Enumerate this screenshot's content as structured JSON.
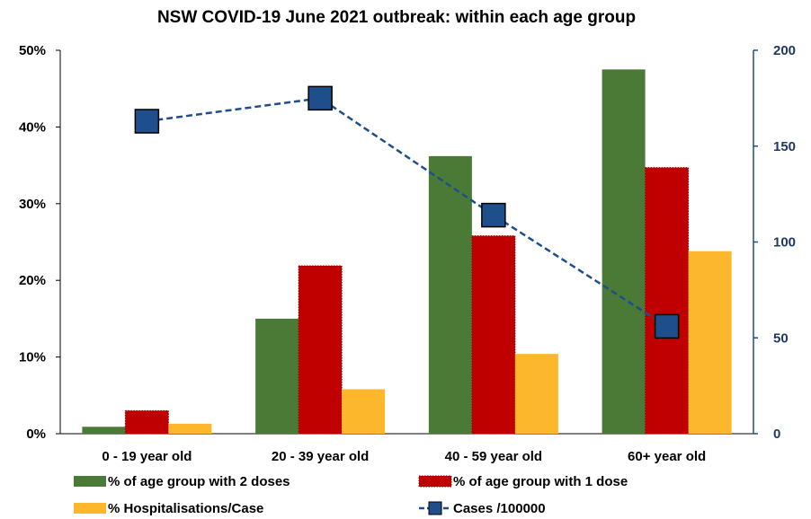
{
  "chart_data": {
    "type": "bar",
    "title": "NSW COVID-19 June 2021 outbreak: within each age group",
    "categories": [
      "0 - 19 year old",
      "20 - 39 year old",
      "40 - 59 year old",
      "60+ year old"
    ],
    "y_left": {
      "ylim": [
        0,
        50
      ],
      "ticks": [
        "0%",
        "10%",
        "20%",
        "30%",
        "40%",
        "50%"
      ],
      "tick_values": [
        0,
        10,
        20,
        30,
        40,
        50
      ]
    },
    "y_right": {
      "ylim": [
        0,
        200
      ],
      "ticks": [
        "0",
        "50",
        "100",
        "150",
        "200"
      ],
      "tick_values": [
        0,
        50,
        100,
        150,
        200
      ]
    },
    "series": [
      {
        "name": "% of age group with 2 doses",
        "type": "bar",
        "axis": "left",
        "color": "#4a7a36",
        "values": [
          0.9,
          15.0,
          36.2,
          47.5
        ]
      },
      {
        "name": "% of age group with 1 dose",
        "type": "bar",
        "axis": "left",
        "color": "#c00000",
        "values": [
          3.0,
          21.9,
          25.8,
          34.7
        ]
      },
      {
        "name": "% Hospitalisations/Case",
        "type": "bar",
        "axis": "left",
        "color": "#fdb72d",
        "values": [
          1.3,
          5.8,
          10.4,
          23.8
        ]
      },
      {
        "name": "Cases /100000",
        "type": "line",
        "axis": "right",
        "color": "#1f4e8c",
        "values": [
          163,
          175,
          114,
          56
        ]
      }
    ],
    "legend_position": "bottom"
  }
}
